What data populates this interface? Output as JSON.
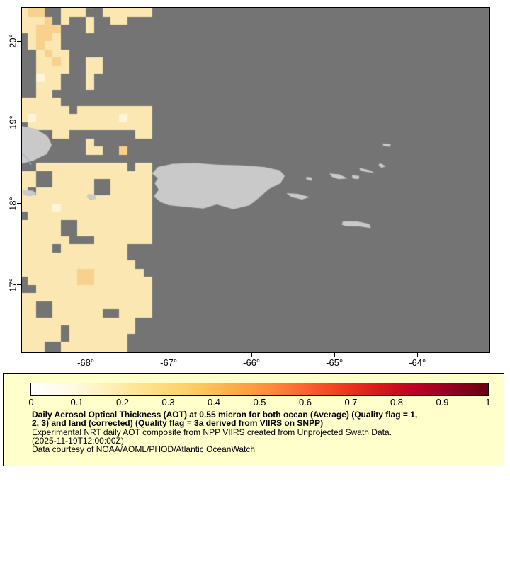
{
  "map": {
    "bounds": {
      "lon_min": -68.77,
      "lon_max": -63.13,
      "lat_min": 16.17,
      "lat_max": 20.41
    },
    "ocean_no_data_color": "#747474",
    "land_color": "#c9c9c9",
    "frame_color": "#000000",
    "river_color": "#9cb8d4",
    "axis": {
      "lat_ticks": [
        {
          "label": "20°",
          "value": 20
        },
        {
          "label": "19°",
          "value": 19
        },
        {
          "label": "18°",
          "value": 18
        },
        {
          "label": "17°",
          "value": 17
        }
      ],
      "lon_ticks": [
        {
          "label": "-68°",
          "value": -68
        },
        {
          "label": "-67°",
          "value": -67
        },
        {
          "label": "-66°",
          "value": -66
        },
        {
          "label": "-65°",
          "value": -65
        },
        {
          "label": "-64°",
          "value": -64
        }
      ]
    },
    "land": {
      "hispaniola": [
        [
          -68.85,
          18.97
        ],
        [
          -68.6,
          18.92
        ],
        [
          -68.46,
          18.83
        ],
        [
          -68.41,
          18.72
        ],
        [
          -68.47,
          18.61
        ],
        [
          -68.63,
          18.53
        ],
        [
          -68.85,
          18.47
        ]
      ],
      "saona": [
        [
          -68.76,
          18.17
        ],
        [
          -68.64,
          18.16
        ],
        [
          -68.59,
          18.12
        ],
        [
          -68.67,
          18.09
        ],
        [
          -68.76,
          18.11
        ]
      ],
      "mona": [
        [
          -67.97,
          18.12
        ],
        [
          -67.89,
          18.11
        ],
        [
          -67.87,
          18.06
        ],
        [
          -67.94,
          18.04
        ],
        [
          -67.99,
          18.08
        ]
      ],
      "puerto_rico": [
        [
          -67.2,
          18.37
        ],
        [
          -67.13,
          18.45
        ],
        [
          -66.95,
          18.49
        ],
        [
          -66.68,
          18.5
        ],
        [
          -66.42,
          18.48
        ],
        [
          -66.12,
          18.47
        ],
        [
          -65.85,
          18.45
        ],
        [
          -65.66,
          18.41
        ],
        [
          -65.6,
          18.34
        ],
        [
          -65.65,
          18.25
        ],
        [
          -65.79,
          18.18
        ],
        [
          -65.9,
          18.08
        ],
        [
          -66.02,
          17.98
        ],
        [
          -66.22,
          17.93
        ],
        [
          -66.42,
          17.99
        ],
        [
          -66.58,
          17.94
        ],
        [
          -66.8,
          17.96
        ],
        [
          -67.0,
          17.98
        ],
        [
          -67.1,
          18.02
        ],
        [
          -67.18,
          18.09
        ],
        [
          -67.12,
          18.17
        ],
        [
          -67.17,
          18.25
        ],
        [
          -67.13,
          18.31
        ]
      ],
      "vieques": [
        [
          -65.58,
          18.13
        ],
        [
          -65.44,
          18.12
        ],
        [
          -65.3,
          18.08
        ],
        [
          -65.39,
          18.05
        ],
        [
          -65.52,
          18.08
        ]
      ],
      "culebra": [
        [
          -65.34,
          18.33
        ],
        [
          -65.27,
          18.32
        ],
        [
          -65.28,
          18.28
        ],
        [
          -65.34,
          18.3
        ]
      ],
      "st_thomas": [
        [
          -65.06,
          18.37
        ],
        [
          -64.94,
          18.36
        ],
        [
          -64.84,
          18.31
        ],
        [
          -64.95,
          18.3
        ],
        [
          -65.03,
          18.33
        ]
      ],
      "st_john": [
        [
          -64.79,
          18.35
        ],
        [
          -64.7,
          18.34
        ],
        [
          -64.71,
          18.3
        ],
        [
          -64.78,
          18.31
        ]
      ],
      "tortola": [
        [
          -64.7,
          18.44
        ],
        [
          -64.57,
          18.41
        ],
        [
          -64.52,
          18.38
        ],
        [
          -64.62,
          18.39
        ],
        [
          -64.69,
          18.41
        ]
      ],
      "virgin_gorda": [
        [
          -64.45,
          18.5
        ],
        [
          -64.38,
          18.46
        ],
        [
          -64.43,
          18.44
        ],
        [
          -64.47,
          18.47
        ]
      ],
      "anegada": [
        [
          -64.42,
          18.74
        ],
        [
          -64.32,
          18.73
        ],
        [
          -64.33,
          18.7
        ],
        [
          -64.41,
          18.71
        ]
      ],
      "st_croix": [
        [
          -64.9,
          17.78
        ],
        [
          -64.72,
          17.78
        ],
        [
          -64.58,
          17.75
        ],
        [
          -64.56,
          17.7
        ],
        [
          -64.7,
          17.72
        ],
        [
          -64.85,
          17.72
        ],
        [
          -64.91,
          17.74
        ]
      ]
    },
    "river_line": [
      [
        -68.77,
        18.62
      ],
      [
        -68.7,
        18.55
      ],
      [
        -68.66,
        18.48
      ]
    ]
  },
  "chart_data": {
    "type": "heatmap",
    "title": "Daily Aerosol Optical Thickness (AOT) at 0.55 micron",
    "value_range": [
      0,
      1
    ],
    "lon_range": [
      -68.77,
      -63.13
    ],
    "lat_range": [
      16.17,
      20.41
    ],
    "note": "AOT retrievals only present west of about -67.1 deg lon; remainder of scene is no-data gray",
    "grid": {
      "lon_start": -68.8,
      "lat_start": 20.5,
      "cell_deg": 0.1,
      "palette": {
        "a": "#fdf4da",
        "b": "#fbe7b1",
        "c": "#f8d28d",
        "d": "#f4bb6a"
      },
      "value_map": {
        "a": 0.05,
        "b": 0.1,
        "c": 0.18,
        "d": 0.25
      },
      "rows": [
        "bbc..bbbb.bbbbbb",
        "bcc..bbb..bbbbbb",
        "bbbc.b..b..bb...",
        "bbccc...b.......",
        ".bccb...........",
        ".bcbb...........",
        "..bcbb..........",
        "..bbcb..bb......",
        "..bbbb..bb......",
        "..abb...b.......",
        "..bbb...b.......",
        "..bb............",
        "bbbbb...........",
        "bbbbbb.bbbbbbbbb",
        "babbbbbbbbbbabbb",
        ".bbbbbbbbbbbbbbb",
        "....bb........bb",
        "........b.......",
        "........bb..c...",
        "................",
        "..bbbbbbbbbbb.bb",
        "bb..bbbbbbbbbbbb",
        "bb..bbbbb..bbbbb",
        "b.bbbbbbb..bbbbb",
        "bbbbbbbbbbbbbbbb",
        "bbbbabbbbbbbbbbb",
        ".bbbbbbbbbbbbbbb",
        "bbbbb..bbbbbbbbb",
        "bbbbb..bbbbbbbbb",
        "bbbbbb...bbbbbbb",
        "bbbb.bbbbbbbb...",
        "bbbbbbbbbbbbb...",
        "bbbbbbbbbbbbbb..",
        "bbbbbbbccbbbbbb.",
        ".bbbbbbccbbbbbbb",
        "..bbbbbbbbbbbbbb",
        "bbbbbbbbbbbbbbbb",
        "bb..bbbbbbbbbbbb",
        "bb..bbbbbb..bbbb",
        "bbbbbbbbbbbbbb..",
        "bbbbb.bbbbbbbb..",
        "bbbbb.bbbbbbb...",
        "bbb..bbbbbbbb...",
        "bbb..bbbbbbbb..."
      ]
    }
  },
  "colorbar": {
    "min": 0,
    "max": 1,
    "tick_labels": [
      "0",
      "0.1",
      "0.2",
      "0.3",
      "0.4",
      "0.5",
      "0.6",
      "0.7",
      "0.8",
      "0.9",
      "1"
    ],
    "gradient_stops": [
      [
        0,
        "#ffffff"
      ],
      [
        0.08,
        "#fffbe6"
      ],
      [
        0.15,
        "#fff3c2"
      ],
      [
        0.22,
        "#fee797"
      ],
      [
        0.3,
        "#fed976"
      ],
      [
        0.38,
        "#fec45c"
      ],
      [
        0.45,
        "#fdaa48"
      ],
      [
        0.52,
        "#fd8d3c"
      ],
      [
        0.6,
        "#fc6330"
      ],
      [
        0.68,
        "#f03b20"
      ],
      [
        0.76,
        "#d7191c"
      ],
      [
        0.84,
        "#bd0026"
      ],
      [
        0.92,
        "#920024"
      ],
      [
        1,
        "#67000d"
      ]
    ]
  },
  "legend": {
    "background_color": "#ffffcc",
    "title_line1": "Daily Aerosol Optical Thickness (AOT) at 0.55 micron for both ocean (Average) (Quality flag = 1,",
    "title_line2": "2, 3) and land (corrected) (Quality flag = 3a derived from VIIRS on SNPP)",
    "info_line": "Experimental NRT daily AOT composite from NPP VIIRS created from Unprojected Swath Data.",
    "timestamp_line": "(2025-11-19T12:00:00Z)",
    "credit_line": "Data courtesy of NOAA/AOML/PHOD/Atlantic OceanWatch"
  }
}
